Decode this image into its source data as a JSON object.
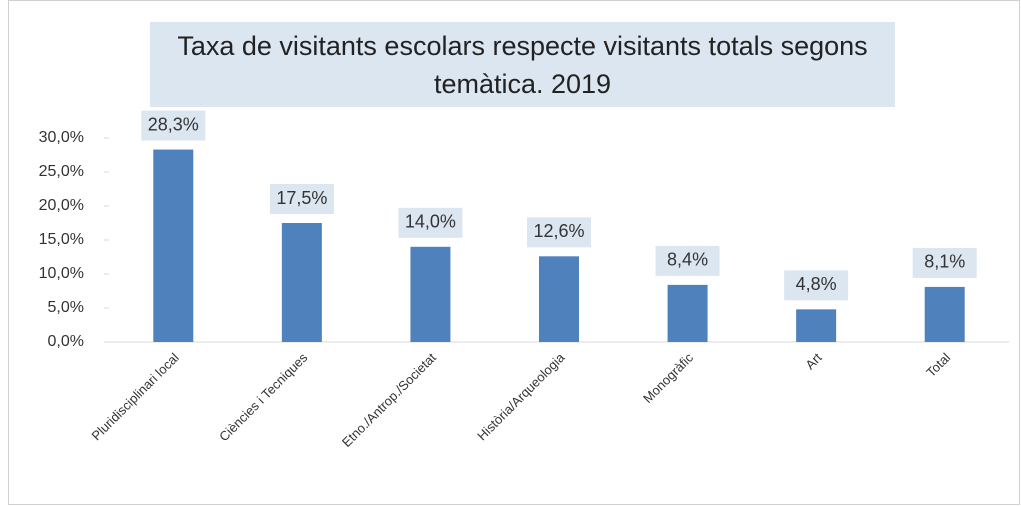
{
  "chart_data": {
    "type": "bar",
    "title": "Taxa de visitants escolars respecte visitants totals segons temàtica. 2019",
    "categories": [
      "Pluridisciplinari local",
      "Ciències i Tecniques",
      "Etno./Antrop./Societat",
      "Història/Arqueologia",
      "Monogràfic",
      "Art",
      "Total"
    ],
    "values": [
      28.3,
      17.5,
      14.0,
      12.6,
      8.4,
      4.8,
      8.1
    ],
    "value_labels": [
      "28,3%",
      "17,5%",
      "14,0%",
      "12,6%",
      "8,4%",
      "4,8%",
      "8,1%"
    ],
    "color": "#4f81bd",
    "ylim": [
      0,
      30
    ],
    "yticks": [
      {
        "value": 0,
        "label": "0,0%"
      },
      {
        "value": 5,
        "label": "5,0%"
      },
      {
        "value": 10,
        "label": "10,0%"
      },
      {
        "value": 15,
        "label": "15,0%"
      },
      {
        "value": 20,
        "label": "20,0%"
      },
      {
        "value": 25,
        "label": "25,0%"
      },
      {
        "value": 30,
        "label": "30,0%"
      }
    ],
    "grid": false
  }
}
